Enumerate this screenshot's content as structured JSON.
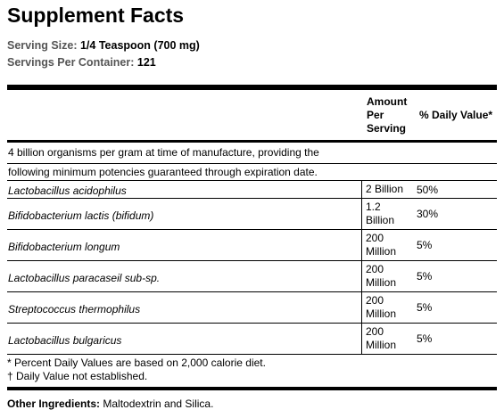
{
  "header": {
    "title": "Supplement Facts",
    "serving_size_label": "Serving Size:",
    "serving_size": "1/4 Teaspoon (700 mg)",
    "servings_label": "Servings Per Container:",
    "servings": "121"
  },
  "table": {
    "columns": [
      "Amount Per Serving",
      "% Daily Value*"
    ],
    "intro": [
      "4 billion organisms per gram at time of manufacture, providing the",
      "following minimum potencies guaranteed through expiration date."
    ],
    "rows": [
      [
        "Lactobacillus acidophilus",
        "2 Billion",
        "50%"
      ],
      [
        "Bifidobacterium lactis (bifidum)",
        "1.2 Billion",
        "30%"
      ],
      [
        "Bifidobacterium longum",
        "200 Million",
        "5%"
      ],
      [
        "Lactobacillus paracaseil sub-sp.",
        "200 Million",
        "5%"
      ],
      [
        "Streptococcus thermophilus",
        "200 Million",
        "5%"
      ],
      [
        "Lactobacillus bulgaricus",
        "200 Million",
        "5%"
      ]
    ]
  },
  "footnotes": [
    "* Percent Daily Values are based on 2,000 calorie diet.",
    "† Daily Value not established."
  ],
  "other": {
    "label": "Other Ingredients:",
    "text": "Maltodextrin and Silica."
  }
}
